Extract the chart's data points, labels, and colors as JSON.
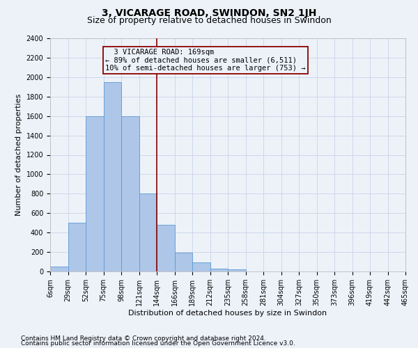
{
  "title": "3, VICARAGE ROAD, SWINDON, SN2 1JH",
  "subtitle": "Size of property relative to detached houses in Swindon",
  "xlabel": "Distribution of detached houses by size in Swindon",
  "ylabel": "Number of detached properties",
  "footnote1": "Contains HM Land Registry data © Crown copyright and database right 2024.",
  "footnote2": "Contains public sector information licensed under the Open Government Licence v3.0.",
  "bin_labels": [
    "6sqm",
    "29sqm",
    "52sqm",
    "75sqm",
    "98sqm",
    "121sqm",
    "144sqm",
    "166sqm",
    "189sqm",
    "212sqm",
    "235sqm",
    "258sqm",
    "281sqm",
    "304sqm",
    "327sqm",
    "350sqm",
    "373sqm",
    "396sqm",
    "419sqm",
    "442sqm",
    "465sqm"
  ],
  "bar_heights": [
    50,
    500,
    1600,
    1950,
    1600,
    800,
    480,
    190,
    90,
    30,
    25,
    0,
    0,
    0,
    0,
    0,
    0,
    0,
    0,
    0
  ],
  "bar_color": "#aec6e8",
  "bar_edge_color": "#5b9bd5",
  "vline_x": 6.0,
  "vline_color": "#8b0000",
  "annotation_line1": "  3 VICARAGE ROAD: 169sqm",
  "annotation_line2": "← 89% of detached houses are smaller (6,511)",
  "annotation_line3": "10% of semi-detached houses are larger (753) →",
  "annotation_box_color": "#8b0000",
  "ylim": [
    0,
    2400
  ],
  "yticks": [
    0,
    200,
    400,
    600,
    800,
    1000,
    1200,
    1400,
    1600,
    1800,
    2000,
    2200,
    2400
  ],
  "grid_color": "#c8d4e8",
  "background_color": "#edf2f9",
  "title_fontsize": 10,
  "subtitle_fontsize": 9,
  "tick_fontsize": 7,
  "label_fontsize": 8,
  "annotation_fontsize": 7.5,
  "footnote_fontsize": 6.5
}
